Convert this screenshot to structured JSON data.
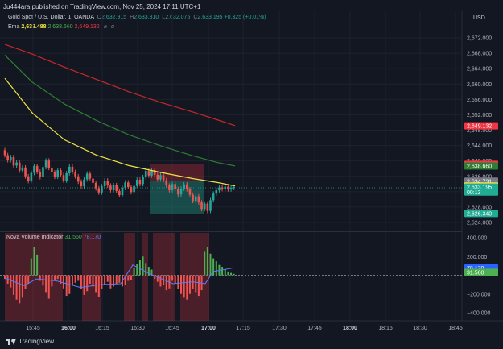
{
  "publisher": "Ju444ara published on TradingView.com, Nov 25, 2024 17:11 UTC+1",
  "symbol": {
    "name": "Gold Spot / U.S. Dollar, 1, OANDA",
    "open_label": "O",
    "open": "2,632.915",
    "high_label": "H",
    "high": "2,633.310",
    "low_label": "L",
    "low": "2,632.075",
    "close_label": "C",
    "close": "2,633.195",
    "change": "+0.325 (+0.01%)"
  },
  "ema": {
    "label": "Ema",
    "v1": "2,633.488",
    "v2": "2,638.660",
    "v3": "2,649.132",
    "icons": [
      "settings-icon",
      "visibility-icon"
    ]
  },
  "currency_button": "USD",
  "price_axis": {
    "ticks": [
      "2,672.000",
      "2,668.000",
      "2,664.000",
      "2,660.000",
      "2,656.000",
      "2,652.000",
      "2,648.000",
      "2,644.000",
      "2,640.000",
      "2,636.000",
      "2,632.000",
      "2,628.000",
      "2,624.000"
    ],
    "tick_values": [
      2672,
      2668,
      2664,
      2660,
      2656,
      2652,
      2648,
      2644,
      2640,
      2636,
      2632,
      2628,
      2624
    ],
    "labels": [
      {
        "text": "2,649.132",
        "value": 2649.132,
        "color": "#f23645"
      },
      {
        "text": "2,639.125",
        "value": 2639.125,
        "color": "#f23645"
      },
      {
        "text": "2,638.660",
        "value": 2638.66,
        "color": "#2e7d32"
      },
      {
        "text": "2,634.731",
        "value": 2634.731,
        "color": "#787b86"
      },
      {
        "text": "2,633.488",
        "value": 2633.488,
        "color": "#f0e442"
      },
      {
        "text": "2,633.195",
        "value": 2633.195,
        "color": "#22ab94"
      },
      {
        "text": "00:13",
        "value": 2631.9,
        "color": "#22ab94"
      },
      {
        "text": "2,626.340",
        "value": 2626.34,
        "color": "#22ab94"
      }
    ]
  },
  "indicator": {
    "name": "Nova Volume Indicator",
    "v1": "31.560",
    "v2": "78.170",
    "axis_ticks": [
      "400.000",
      "200.000",
      "−200.000",
      "−400.000"
    ],
    "axis_values": [
      400,
      200,
      -200,
      -400
    ],
    "labels": [
      {
        "text": "78.170",
        "value": 78.17,
        "color": "#2962ff"
      },
      {
        "text": "31.560",
        "value": 31.56,
        "color": "#4caf50"
      }
    ]
  },
  "time_axis": [
    "15:45",
    "16:00",
    "16:15",
    "16:30",
    "16:45",
    "17:00",
    "17:15",
    "17:30",
    "17:45",
    "18:00",
    "18:15",
    "18:30",
    "18:45"
  ],
  "time_axis_bold": [
    "16:00",
    "17:00",
    "18:00"
  ],
  "brand": "TradingView",
  "colors": {
    "background": "#131722",
    "up": "#26a69a",
    "down": "#ef5350",
    "ema1": "#f0e442",
    "ema2": "#2e7d32",
    "ema3": "#c62828",
    "zone_red": "rgba(242,54,69,0.28)",
    "zone_teal": "rgba(34,171,148,0.35)"
  }
}
